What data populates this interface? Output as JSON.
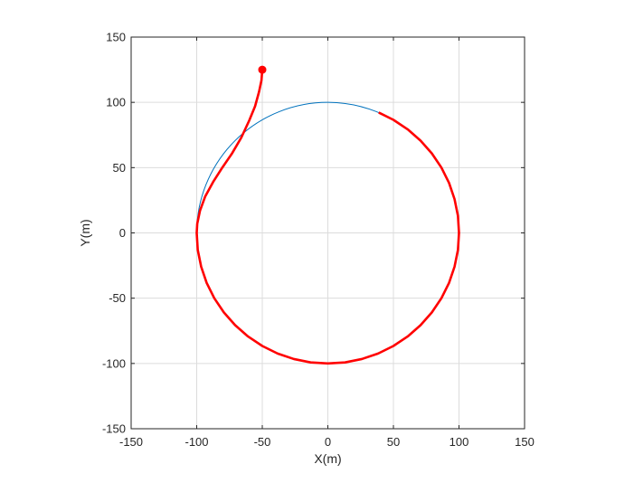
{
  "chart_data": {
    "type": "line",
    "title": "",
    "xlabel": "X(m)",
    "ylabel": "Y(m)",
    "xlim": [
      -150,
      150
    ],
    "ylim": [
      -150,
      150
    ],
    "xticks": [
      -150,
      -100,
      -50,
      0,
      50,
      100,
      150
    ],
    "yticks": [
      -150,
      -100,
      -50,
      0,
      50,
      100,
      150
    ],
    "xtick_labels": [
      "-150",
      "-100",
      "-50",
      "0",
      "50",
      "100",
      "150"
    ],
    "ytick_labels": [
      "-150",
      "-100",
      "-50",
      "0",
      "50",
      "100",
      "150"
    ],
    "grid": true,
    "box": true,
    "series": [
      {
        "kind": "reference-circle",
        "color": "#0072BD",
        "center": [
          0,
          0
        ],
        "radius": 100
      },
      {
        "kind": "trajectory",
        "color": "#FF0000",
        "marker_at_start": true,
        "x": [
          -50,
          -50.6,
          -52.5,
          -55.5,
          -60,
          -66,
          -73,
          -80.5,
          -87.5,
          -93.5,
          -97.5,
          -99.6,
          -100,
          -99.2,
          -96.6,
          -92.4,
          -86.6,
          -79.3,
          -70.7,
          -60.9,
          -50,
          -38.3,
          -25.9,
          -13.1,
          0,
          13.1,
          25.9,
          38.3,
          50,
          60.9,
          70.7,
          79.3,
          86.6,
          92.4,
          96.6,
          99.2,
          100,
          99.2,
          96.6,
          92.4,
          86.6,
          79.3,
          70.7,
          60.9,
          50,
          38.8
        ],
        "y": [
          125,
          117,
          108,
          97,
          86,
          73,
          61,
          50,
          39,
          28,
          17,
          7,
          0,
          -13.1,
          -25.9,
          -38.3,
          -50,
          -60.9,
          -70.7,
          -79.3,
          -86.6,
          -92.4,
          -96.6,
          -99.2,
          -100,
          -99.2,
          -96.6,
          -92.4,
          -86.6,
          -79.3,
          -70.7,
          -60.9,
          -50,
          -38.3,
          -25.9,
          -13.1,
          0,
          13.1,
          25.9,
          38.3,
          50,
          60.9,
          70.7,
          79.3,
          86.6,
          92.2
        ]
      }
    ]
  }
}
